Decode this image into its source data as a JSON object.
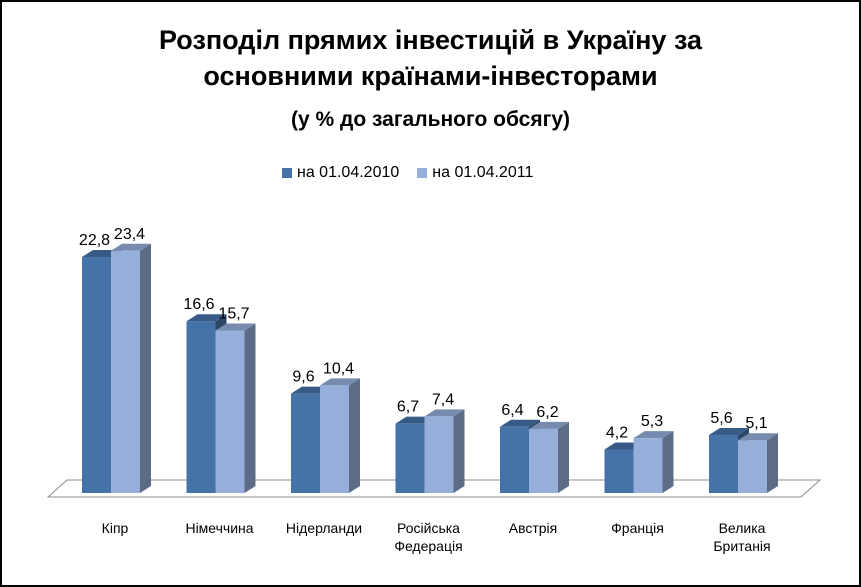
{
  "chart_data": {
    "type": "bar",
    "title_lines": [
      "Розподіл прямих інвестицій в Україну за",
      "основними країнами-інвесторами"
    ],
    "subtitle": "(у % до загального обсягу)",
    "categories": [
      [
        "Кіпр"
      ],
      [
        "Німеччина"
      ],
      [
        "Нідерланди"
      ],
      [
        "Російська",
        "Федерація"
      ],
      [
        "Австрія"
      ],
      [
        "Франція"
      ],
      [
        "Велика",
        "Британія"
      ]
    ],
    "series": [
      {
        "name": "на 01.04.2010",
        "values": [
          22.8,
          16.6,
          9.6,
          6.7,
          6.4,
          4.2,
          5.6
        ],
        "labels": [
          "22,8",
          "16,6",
          "9,6",
          "6,7",
          "6,4",
          "4,2",
          "5,6"
        ],
        "color": "#4572A7"
      },
      {
        "name": "на 01.04.2011",
        "values": [
          23.4,
          15.7,
          10.4,
          7.4,
          6.2,
          5.3,
          5.1
        ],
        "labels": [
          "23,4",
          "15,7",
          "10,4",
          "7,4",
          "6,2",
          "5,3",
          "5,1"
        ],
        "color": "#95AEDA"
      }
    ],
    "legend_position": "top",
    "grid": false,
    "ylim": [
      0,
      25
    ]
  }
}
